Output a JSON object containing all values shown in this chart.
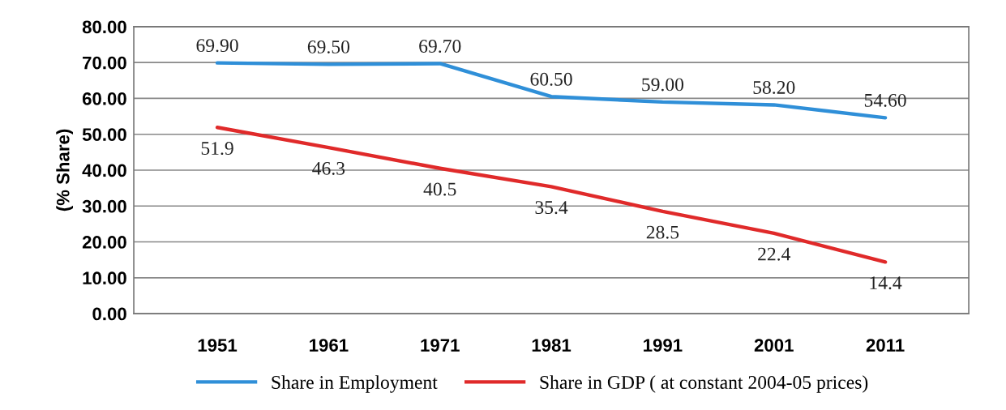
{
  "chart_data": {
    "type": "line",
    "ylabel": "(% Share)",
    "categories": [
      "1951",
      "1961",
      "1971",
      "1981",
      "1991",
      "2001",
      "2011"
    ],
    "series": [
      {
        "name": "Share in Employment",
        "color": "#2f8fd8",
        "values": [
          69.9,
          69.5,
          69.7,
          60.5,
          59.0,
          58.2,
          54.6
        ],
        "value_labels": [
          "69.90",
          "69.50",
          "69.70",
          "60.50",
          "59.00",
          "58.20",
          "54.60"
        ]
      },
      {
        "name": "Share in GDP ( at constant 2004-05 prices)",
        "color": "#e02a2a",
        "values": [
          51.9,
          46.3,
          40.5,
          35.4,
          28.5,
          22.4,
          14.4
        ],
        "value_labels": [
          "51.9",
          "46.3",
          "40.5",
          "35.4",
          "28.5",
          "22.4",
          "14.4"
        ]
      }
    ],
    "ylim": [
      0,
      80
    ],
    "yticks": [
      {
        "value": 0,
        "label": "0.00"
      },
      {
        "value": 10,
        "label": "10.00"
      },
      {
        "value": 20,
        "label": "20.00"
      },
      {
        "value": 30,
        "label": "30.00"
      },
      {
        "value": 40,
        "label": "40.00"
      },
      {
        "value": 50,
        "label": "50.00"
      },
      {
        "value": 60,
        "label": "60.00"
      },
      {
        "value": 70,
        "label": "70.00"
      },
      {
        "value": 80,
        "label": "80.00"
      }
    ],
    "grid": "y",
    "legend": "bottom",
    "marker": "none",
    "line_style": "solid"
  }
}
